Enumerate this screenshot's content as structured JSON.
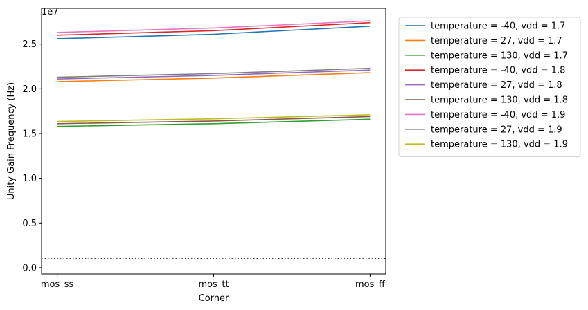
{
  "chart_data": {
    "type": "line",
    "categories": [
      "mos_ss",
      "mos_tt",
      "mos_ff"
    ],
    "xlabel": "Corner",
    "ylabel": "Unity Gain Frequency (Hz)",
    "y_scale_label": "1e7",
    "ylim": [
      -0.07,
      2.9
    ],
    "yticks": [
      0.0,
      0.5,
      1.0,
      1.5,
      2.0,
      2.5
    ],
    "ytick_labels": [
      "0.0",
      "0.5",
      "1.0",
      "1.5",
      "2.0",
      "2.5"
    ],
    "grid": false,
    "legend_position": "outside-upper-right",
    "reference_line": {
      "y": 0.1,
      "style": "dotted",
      "color": "#000000"
    },
    "series": [
      {
        "name": "temperature = -40, vdd = 1.7",
        "color": "#1f77b4",
        "values": [
          2.56,
          2.61,
          2.7
        ]
      },
      {
        "name": "temperature = 27, vdd = 1.7",
        "color": "#ff7f0e",
        "values": [
          2.08,
          2.12,
          2.18
        ]
      },
      {
        "name": "temperature = 130, vdd = 1.7",
        "color": "#2ca02c",
        "values": [
          1.58,
          1.61,
          1.66
        ]
      },
      {
        "name": "temperature = -40, vdd = 1.8",
        "color": "#d62728",
        "values": [
          2.6,
          2.65,
          2.74
        ]
      },
      {
        "name": "temperature = 27, vdd = 1.8",
        "color": "#9467bd",
        "values": [
          2.11,
          2.15,
          2.21
        ]
      },
      {
        "name": "temperature = 130, vdd = 1.8",
        "color": "#8c564b",
        "values": [
          1.61,
          1.64,
          1.69
        ]
      },
      {
        "name": "temperature = -40, vdd = 1.9",
        "color": "#e377c2",
        "values": [
          2.63,
          2.68,
          2.76
        ]
      },
      {
        "name": "temperature = 27, vdd = 1.9",
        "color": "#7f7f7f",
        "values": [
          2.13,
          2.17,
          2.23
        ]
      },
      {
        "name": "temperature = 130, vdd = 1.9",
        "color": "#bcbd22",
        "values": [
          1.635,
          1.665,
          1.71
        ]
      }
    ]
  }
}
